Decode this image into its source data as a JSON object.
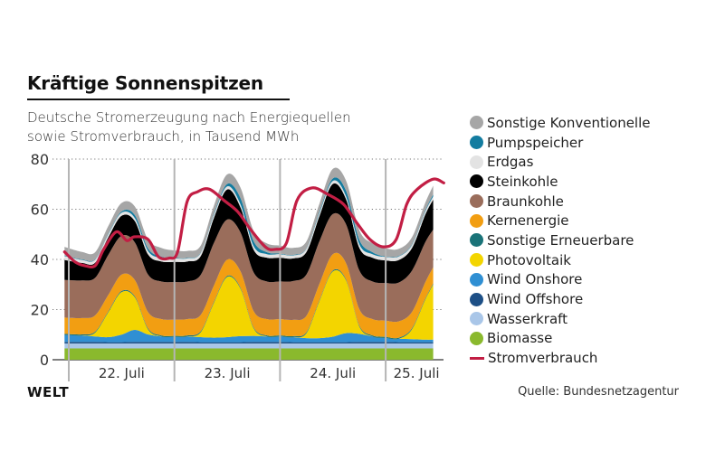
{
  "title": "Kräftige Sonnenspitzen",
  "subtitle_line1": "Deutsche Stromerzeugung nach Energiequellen",
  "subtitle_line2": "sowie Stromverbrauch, in Tausend MWh",
  "logo": "WELT",
  "source": "Quelle: Bundesnetzagentur",
  "chart_data": {
    "type": "area",
    "stacked": true,
    "title": "Kräftige Sonnenspitzen",
    "subtitle": "Deutsche Stromerzeugung nach Energiequellen sowie Stromverbrauch, in Tausend MWh",
    "xlabel": "",
    "ylabel": "Tausend MWh",
    "ylim": [
      0,
      80
    ],
    "yticks": [
      0,
      20,
      40,
      60,
      80
    ],
    "ytick_labels": [
      "0",
      "20",
      "40",
      "60",
      "80"
    ],
    "grid": "horizontal dotted",
    "legend_position": "right",
    "x_unit": "days since 22. Juli 00:00",
    "xlim": [
      -0.05,
      3.56
    ],
    "day_separators": [
      0,
      1,
      2,
      3
    ],
    "categories": [
      "22. Juli",
      "23. Juli",
      "24. Juli",
      "25. Juli"
    ],
    "x": [
      -0.04,
      0.125,
      0.25,
      0.375,
      0.5,
      0.625,
      0.75,
      0.875,
      1.0,
      1.125,
      1.25,
      1.375,
      1.5,
      1.625,
      1.75,
      1.875,
      2.0,
      2.125,
      2.25,
      2.375,
      2.5,
      2.625,
      2.75,
      2.875,
      3.0,
      3.125,
      3.25,
      3.375,
      3.45
    ],
    "series": [
      {
        "name": "Biomasse",
        "color": "#8ab92d",
        "values": [
          4.5,
          4.5,
          4.5,
          4.5,
          4.5,
          4.5,
          4.5,
          4.5,
          4.5,
          4.5,
          4.5,
          4.5,
          4.5,
          4.5,
          4.5,
          4.5,
          4.5,
          4.5,
          4.5,
          4.5,
          4.5,
          4.5,
          4.5,
          4.5,
          4.5,
          4.5,
          4.5,
          4.5,
          4.5
        ]
      },
      {
        "name": "Wasserkraft",
        "color": "#a9c6e8",
        "values": [
          2,
          2,
          2,
          2,
          2,
          2,
          2,
          2,
          2,
          2,
          2,
          2,
          2,
          2,
          2,
          2,
          2,
          2,
          2,
          2,
          2,
          2,
          2,
          2,
          2,
          2,
          2,
          2,
          2
        ]
      },
      {
        "name": "Wind Offshore",
        "color": "#1d4f86",
        "values": [
          0.6,
          0.6,
          0.6,
          0.5,
          0.5,
          0.6,
          0.6,
          0.6,
          0.6,
          0.6,
          0.5,
          0.5,
          0.5,
          0.5,
          0.6,
          0.6,
          0.6,
          0.5,
          0.5,
          0.5,
          0.5,
          0.5,
          0.6,
          0.6,
          0.6,
          0.5,
          0.5,
          0.5,
          0.5
        ]
      },
      {
        "name": "Wind Onshore",
        "color": "#2f8fd3",
        "values": [
          2.8,
          2.6,
          2.2,
          2.0,
          3.0,
          4.8,
          3.0,
          2.2,
          2.0,
          2.2,
          2.0,
          1.8,
          2.0,
          2.4,
          2.4,
          2.2,
          2.2,
          2.0,
          1.6,
          1.6,
          2.2,
          3.6,
          3.2,
          2.2,
          1.6,
          1.4,
          1.2,
          1.0,
          1.0
        ]
      },
      {
        "name": "Photovoltaik",
        "color": "#f3d500",
        "values": [
          0,
          0,
          1.5,
          10,
          17,
          13,
          2,
          0,
          0,
          0,
          2,
          14,
          24,
          19,
          3,
          0,
          0,
          0,
          2,
          15,
          26,
          21,
          3,
          0,
          0,
          0,
          4,
          16,
          22
        ]
      },
      {
        "name": "Sonstige Erneuerbare",
        "color": "#1a7378",
        "values": [
          0.4,
          0.4,
          0.4,
          0.4,
          0.4,
          0.4,
          0.4,
          0.4,
          0.4,
          0.4,
          0.4,
          0.4,
          0.4,
          0.4,
          0.4,
          0.4,
          0.4,
          0.4,
          0.4,
          0.4,
          0.4,
          0.4,
          0.4,
          0.4,
          0.4,
          0.4,
          0.4,
          0.4,
          0.4
        ]
      },
      {
        "name": "Kernenergie",
        "color": "#f29e12",
        "values": [
          6.5,
          6.5,
          6.5,
          6.5,
          6.5,
          6.5,
          6.5,
          6.5,
          6.5,
          6.5,
          6.5,
          6.5,
          6.5,
          6.5,
          6.5,
          6.5,
          6.5,
          6.5,
          6.5,
          6.5,
          6.5,
          6.5,
          6.5,
          6.5,
          6.5,
          6.5,
          6.5,
          6.5,
          6.5
        ]
      },
      {
        "name": "Braunkohle",
        "color": "#9a6d5b",
        "values": [
          15,
          15,
          15,
          16,
          15.5,
          15,
          15,
          15,
          15,
          15,
          16,
          17,
          16,
          15.5,
          15.5,
          15,
          15,
          15.5,
          16.5,
          17,
          16,
          15.5,
          15.5,
          15,
          15,
          15.5,
          16.5,
          16,
          15
        ]
      },
      {
        "name": "Steinkohle",
        "color": "#000000",
        "values": [
          8,
          7,
          6,
          7,
          8,
          8.5,
          8,
          8,
          8,
          8,
          7.5,
          10,
          12,
          10,
          9,
          9.5,
          9.5,
          9,
          9,
          10,
          12,
          10,
          9,
          9.5,
          9,
          9,
          9,
          11,
          12
        ]
      },
      {
        "name": "Erdgas",
        "color": "#e3e3e3",
        "values": [
          1.5,
          1.2,
          1.2,
          1.2,
          1.2,
          1.2,
          1.4,
          1.4,
          1.4,
          1.2,
          1.2,
          1.2,
          1.2,
          1.2,
          1.4,
          1.4,
          1.4,
          1.2,
          1.2,
          1.2,
          1.2,
          1.2,
          1.4,
          1.4,
          1.4,
          1.4,
          1.2,
          1.2,
          1.2
        ]
      },
      {
        "name": "Pumpspeicher",
        "color": "#137ca0",
        "values": [
          0.2,
          0.2,
          0.2,
          0.3,
          0.5,
          1.2,
          1.0,
          0.5,
          0.2,
          0.2,
          0.2,
          0.5,
          1.0,
          2.5,
          2.0,
          0.8,
          0.2,
          0.2,
          0.2,
          0.6,
          1.0,
          2.2,
          1.8,
          0.8,
          0.2,
          0.2,
          0.3,
          0.5,
          0.8
        ]
      },
      {
        "name": "Sonstige Konventionelle",
        "color": "#a6a6a6",
        "values": [
          3.5,
          3.0,
          2.8,
          3.0,
          3.4,
          3.4,
          3.5,
          3.5,
          3.0,
          2.8,
          2.8,
          3.2,
          3.8,
          4.2,
          4.0,
          3.5,
          3.2,
          2.8,
          2.8,
          3.2,
          3.8,
          4.0,
          3.8,
          3.5,
          3.2,
          2.8,
          2.8,
          3.0,
          3.5
        ]
      }
    ],
    "line": {
      "name": "Stromverbrauch",
      "color": "#c21e44",
      "x": [
        -0.04,
        0.06,
        0.15,
        0.25,
        0.33,
        0.45,
        0.55,
        0.62,
        0.75,
        0.85,
        0.95,
        1.03,
        1.12,
        1.22,
        1.33,
        1.47,
        1.6,
        1.72,
        1.86,
        1.95,
        2.06,
        2.16,
        2.3,
        2.45,
        2.6,
        2.72,
        2.85,
        2.98,
        3.1,
        3.2,
        3.3,
        3.45,
        3.55
      ],
      "values": [
        43,
        39,
        37.5,
        37.5,
        44,
        51,
        47.5,
        49,
        48,
        41,
        40.5,
        43,
        63,
        67,
        68,
        63.5,
        59,
        52,
        45,
        44,
        46.5,
        63.5,
        68.5,
        66,
        62,
        55,
        48,
        45,
        48,
        62,
        68,
        72,
        70.5
      ]
    }
  },
  "legend": [
    {
      "label": "Sonstige Konventionelle",
      "color": "#a6a6a6",
      "shape": "dot"
    },
    {
      "label": "Pumpspeicher",
      "color": "#137ca0",
      "shape": "dot"
    },
    {
      "label": "Erdgas",
      "color": "#e3e3e3",
      "shape": "dot"
    },
    {
      "label": "Steinkohle",
      "color": "#000000",
      "shape": "dot"
    },
    {
      "label": "Braunkohle",
      "color": "#9a6d5b",
      "shape": "dot"
    },
    {
      "label": "Kernenergie",
      "color": "#f29e12",
      "shape": "dot"
    },
    {
      "label": "Sonstige Erneuerbare",
      "color": "#1a7378",
      "shape": "dot"
    },
    {
      "label": "Photovoltaik",
      "color": "#f3d500",
      "shape": "dot"
    },
    {
      "label": "Wind Onshore",
      "color": "#2f8fd3",
      "shape": "dot"
    },
    {
      "label": "Wind Offshore",
      "color": "#1d4f86",
      "shape": "dot"
    },
    {
      "label": "Wasserkraft",
      "color": "#a9c6e8",
      "shape": "dot"
    },
    {
      "label": "Biomasse",
      "color": "#8ab92d",
      "shape": "dot"
    },
    {
      "label": "Stromverbrauch",
      "color": "#c21e44",
      "shape": "line"
    }
  ]
}
